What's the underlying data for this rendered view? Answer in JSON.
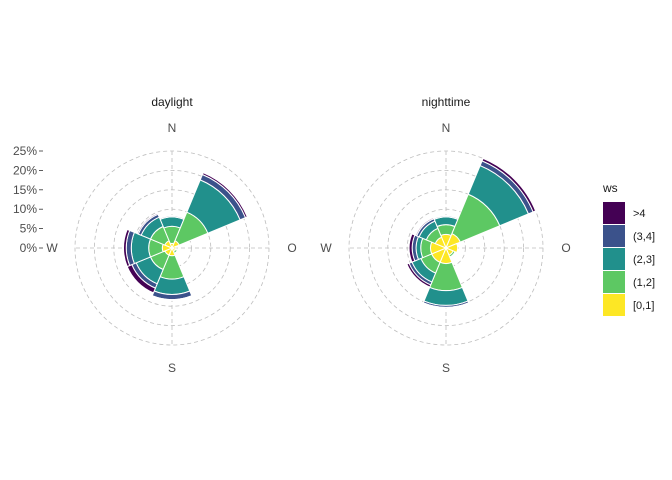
{
  "chart_data": {
    "type": "windrose",
    "facets": [
      {
        "title": "daylight",
        "directions": [
          "N",
          "NE",
          "E",
          "SE",
          "S",
          "SW",
          "W",
          "NW"
        ],
        "bins": [
          "[0,1]",
          "(1,2]",
          "(2,3]",
          "(3,4]",
          ">4"
        ],
        "values": [
          [
            1.2,
            4.4,
            2.4,
            0.3,
            0.1
          ],
          [
            2.0,
            8.0,
            9.0,
            1.5,
            0.5
          ],
          [
            1.0,
            0.0,
            0.0,
            0.0,
            0.0
          ],
          [
            1.0,
            0.5,
            0.0,
            0.0,
            0.0
          ],
          [
            2.0,
            6.0,
            4.0,
            1.3,
            0.2
          ],
          [
            2.0,
            4.0,
            4.0,
            1.2,
            1.3
          ],
          [
            2.5,
            3.5,
            4.5,
            1.3,
            0.7
          ],
          [
            2.0,
            4.0,
            2.6,
            0.8,
            0.3
          ]
        ]
      },
      {
        "title": "nighttime",
        "directions": [
          "N",
          "NE",
          "E",
          "SE",
          "S",
          "SW",
          "W",
          "NW"
        ],
        "bins": [
          "[0,1]",
          "(1,2]",
          "(2,3]",
          "(3,4]",
          ">4"
        ],
        "values": [
          [
            3.5,
            2.5,
            2.0,
            0.3,
            0.1
          ],
          [
            4.0,
            11.0,
            8.0,
            1.3,
            0.7
          ],
          [
            3.0,
            0.0,
            0.0,
            0.0,
            0.0
          ],
          [
            2.0,
            0.5,
            0.0,
            0.0,
            0.0
          ],
          [
            4.0,
            7.0,
            3.8,
            0.5,
            0.2
          ],
          [
            4.0,
            3.0,
            2.5,
            0.8,
            0.6
          ],
          [
            4.0,
            2.5,
            1.2,
            1.0,
            0.8
          ],
          [
            3.0,
            2.5,
            2.0,
            0.7,
            0.3
          ]
        ]
      }
    ],
    "compass_labels": {
      "n": "N",
      "e": "O",
      "s": "S",
      "w": "W"
    },
    "radial_ticks": [
      "0%",
      "5%",
      "10%",
      "15%",
      "20%",
      "25%"
    ],
    "radial_max": 25,
    "legend": {
      "title": "ws",
      "items": [
        {
          "label": ">4",
          "color": "#440154"
        },
        {
          "label": "(3,4]",
          "color": "#3b528b"
        },
        {
          "label": "(2,3]",
          "color": "#21908c"
        },
        {
          "label": "(1,2]",
          "color": "#5dc863"
        },
        {
          "label": "[0,1]",
          "color": "#fde725"
        }
      ]
    },
    "bin_colors": {
      "[0,1]": "#fde725",
      "(1,2]": "#5dc863",
      "(2,3]": "#21908c",
      "(3,4]": "#3b528b",
      ">4": "#440154"
    }
  }
}
